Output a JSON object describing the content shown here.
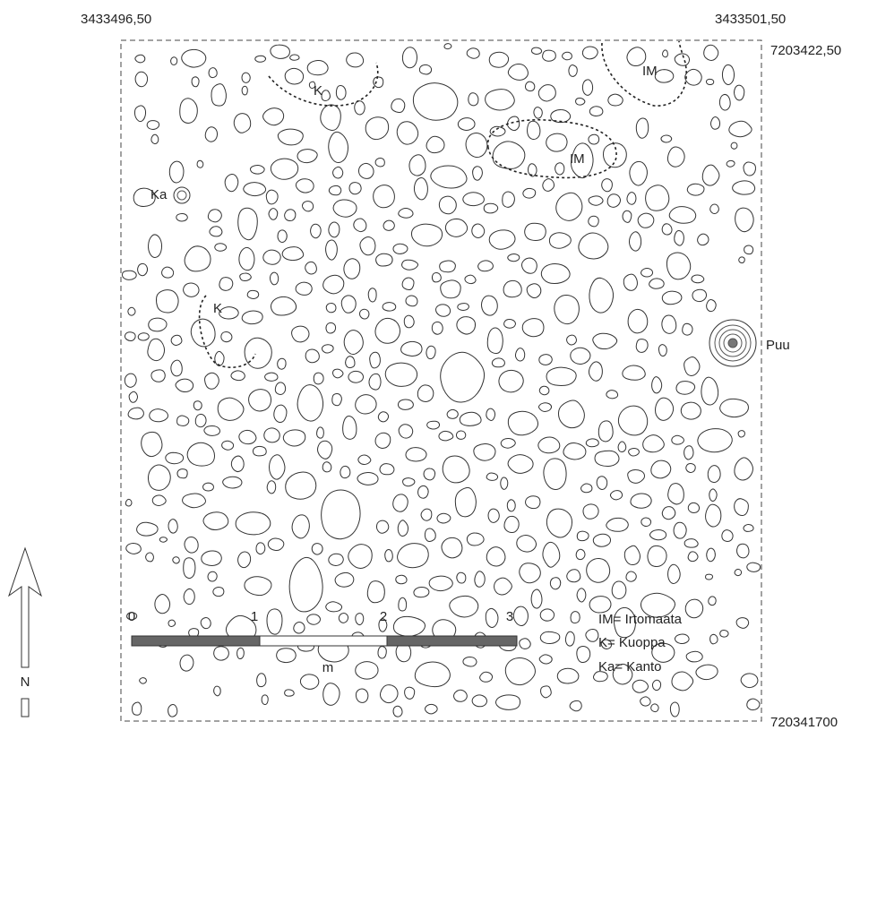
{
  "coordinates": {
    "top_left": "3433496,50",
    "top_right": "3433501,50",
    "right_top": "7203422,50",
    "right_bottom": "720341700"
  },
  "features": {
    "im_1": "IM",
    "im_2": "IM",
    "k_1": "K",
    "k_2": "K",
    "ka": "Ka",
    "puu": "Puu"
  },
  "north": "N",
  "legend": [
    "IM= Irtomaata",
    "K= Kuoppa",
    "Ka= Kanto"
  ],
  "scale": {
    "labels": [
      "0",
      "1",
      "2",
      "3"
    ],
    "unit": "m"
  }
}
